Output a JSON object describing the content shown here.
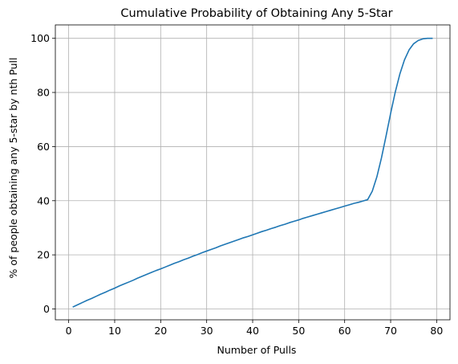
{
  "chart_data": {
    "type": "line",
    "title": "Cumulative Probability of Obtaining Any 5-Star",
    "xlabel": "Number of Pulls",
    "ylabel": "% of people obtaining any 5-star by nth Pull",
    "xlim": [
      -2.9,
      82.9
    ],
    "ylim": [
      -4.0,
      104.95
    ],
    "xticks": [
      0,
      10,
      20,
      30,
      40,
      50,
      60,
      70,
      80
    ],
    "yticks": [
      0,
      20,
      40,
      60,
      80,
      100
    ],
    "grid": true,
    "series": [
      {
        "color": "#1f77b4",
        "x": [
          1,
          2,
          3,
          4,
          5,
          6,
          7,
          8,
          9,
          10,
          11,
          12,
          13,
          14,
          15,
          16,
          17,
          18,
          19,
          20,
          21,
          22,
          23,
          24,
          25,
          26,
          27,
          28,
          29,
          30,
          31,
          32,
          33,
          34,
          35,
          36,
          37,
          38,
          39,
          40,
          41,
          42,
          43,
          44,
          45,
          46,
          47,
          48,
          49,
          50,
          51,
          52,
          53,
          54,
          55,
          56,
          57,
          58,
          59,
          60,
          61,
          62,
          63,
          64,
          65,
          66,
          67,
          68,
          69,
          70,
          71,
          72,
          73,
          74,
          75,
          76,
          77,
          78,
          79
        ],
        "y": [
          0.8,
          1.6,
          2.4,
          3.2,
          3.9,
          4.7,
          5.5,
          6.2,
          7.0,
          7.7,
          8.5,
          9.2,
          9.9,
          10.6,
          11.4,
          12.1,
          12.8,
          13.5,
          14.2,
          14.8,
          15.5,
          16.2,
          16.9,
          17.5,
          18.2,
          18.8,
          19.5,
          20.1,
          20.8,
          21.4,
          22.0,
          22.6,
          23.3,
          23.9,
          24.5,
          25.1,
          25.7,
          26.3,
          26.8,
          27.4,
          28.0,
          28.6,
          29.1,
          29.7,
          30.2,
          30.8,
          31.3,
          31.9,
          32.4,
          32.9,
          33.5,
          34.0,
          34.5,
          35.0,
          35.5,
          36.0,
          36.5,
          37.0,
          37.5,
          38.0,
          38.5,
          39.0,
          39.4,
          39.9,
          40.4,
          43.5,
          48.8,
          55.8,
          63.9,
          72.3,
          80.1,
          86.8,
          92.0,
          95.7,
          98.0,
          99.2,
          99.8,
          100.0,
          100.0
        ]
      }
    ]
  }
}
